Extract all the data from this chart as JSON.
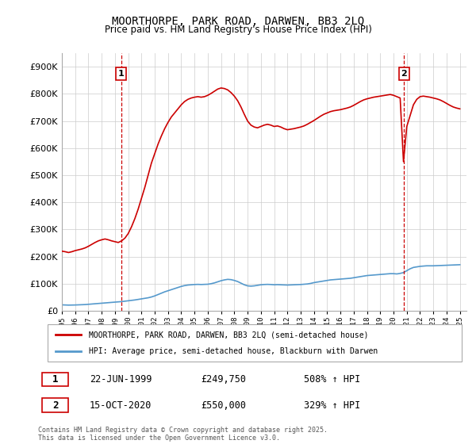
{
  "title": "MOORTHORPE, PARK ROAD, DARWEN, BB3 2LQ",
  "subtitle": "Price paid vs. HM Land Registry's House Price Index (HPI)",
  "legend_label_red": "MOORTHORPE, PARK ROAD, DARWEN, BB3 2LQ (semi-detached house)",
  "legend_label_blue": "HPI: Average price, semi-detached house, Blackburn with Darwen",
  "sale1_date": "22-JUN-1999",
  "sale1_price": 249750,
  "sale1_hpi_pct": "508% ↑ HPI",
  "sale2_date": "15-OCT-2020",
  "sale2_price": 550000,
  "sale2_hpi_pct": "329% ↑ HPI",
  "footer": "Contains HM Land Registry data © Crown copyright and database right 2025.\nThis data is licensed under the Open Government Licence v3.0.",
  "red_color": "#cc0000",
  "blue_color": "#5599cc",
  "dashed_color": "#cc0000",
  "background_color": "#ffffff",
  "grid_color": "#cccccc",
  "ylim": [
    0,
    950000
  ],
  "ytick_step": 100000,
  "sale1_x": 1999.47,
  "sale2_x": 2020.79,
  "hpi_data": {
    "years": [
      1995.0,
      1995.25,
      1995.5,
      1995.75,
      1996.0,
      1996.25,
      1996.5,
      1996.75,
      1997.0,
      1997.25,
      1997.5,
      1997.75,
      1998.0,
      1998.25,
      1998.5,
      1998.75,
      1999.0,
      1999.25,
      1999.5,
      1999.75,
      2000.0,
      2000.25,
      2000.5,
      2000.75,
      2001.0,
      2001.25,
      2001.5,
      2001.75,
      2002.0,
      2002.25,
      2002.5,
      2002.75,
      2003.0,
      2003.25,
      2003.5,
      2003.75,
      2004.0,
      2004.25,
      2004.5,
      2004.75,
      2005.0,
      2005.25,
      2005.5,
      2005.75,
      2006.0,
      2006.25,
      2006.5,
      2006.75,
      2007.0,
      2007.25,
      2007.5,
      2007.75,
      2008.0,
      2008.25,
      2008.5,
      2008.75,
      2009.0,
      2009.25,
      2009.5,
      2009.75,
      2010.0,
      2010.25,
      2010.5,
      2010.75,
      2011.0,
      2011.25,
      2011.5,
      2011.75,
      2012.0,
      2012.25,
      2012.5,
      2012.75,
      2013.0,
      2013.25,
      2013.5,
      2013.75,
      2014.0,
      2014.25,
      2014.5,
      2014.75,
      2015.0,
      2015.25,
      2015.5,
      2015.75,
      2016.0,
      2016.25,
      2016.5,
      2016.75,
      2017.0,
      2017.25,
      2017.5,
      2017.75,
      2018.0,
      2018.25,
      2018.5,
      2018.75,
      2019.0,
      2019.25,
      2019.5,
      2019.75,
      2020.0,
      2020.25,
      2020.5,
      2020.75,
      2021.0,
      2021.25,
      2021.5,
      2021.75,
      2022.0,
      2022.25,
      2022.5,
      2022.75,
      2023.0,
      2023.25,
      2023.5,
      2023.75,
      2024.0,
      2024.25,
      2024.5,
      2024.75,
      2025.0
    ],
    "values": [
      22000,
      21500,
      21000,
      21200,
      21500,
      22000,
      22500,
      23000,
      24000,
      25000,
      26000,
      27000,
      28000,
      29000,
      30000,
      31000,
      32000,
      33000,
      34000,
      35500,
      37000,
      38500,
      40000,
      42000,
      44000,
      46000,
      48000,
      51000,
      55000,
      60000,
      65000,
      70000,
      74000,
      78000,
      82000,
      86000,
      90000,
      93000,
      95000,
      96000,
      97000,
      97500,
      97000,
      97500,
      98000,
      100000,
      103000,
      107000,
      111000,
      114000,
      116000,
      115000,
      112000,
      108000,
      102000,
      96000,
      92000,
      91000,
      92000,
      94000,
      96000,
      97000,
      97500,
      97000,
      96000,
      96500,
      96000,
      95500,
      95000,
      95500,
      96000,
      96500,
      97000,
      98000,
      99000,
      101000,
      104000,
      106000,
      108000,
      110000,
      112000,
      114000,
      115000,
      116000,
      117000,
      118000,
      119000,
      120000,
      122000,
      124000,
      126000,
      128000,
      130000,
      131000,
      132000,
      133000,
      134000,
      135000,
      136000,
      137000,
      137000,
      136000,
      138000,
      141000,
      148000,
      155000,
      160000,
      162000,
      164000,
      165000,
      166000,
      166000,
      166000,
      166500,
      167000,
      167500,
      168000,
      168500,
      169000,
      169500,
      170000
    ]
  },
  "red_data": {
    "years": [
      1995.0,
      1995.25,
      1995.5,
      1995.75,
      1996.0,
      1996.25,
      1996.5,
      1996.75,
      1997.0,
      1997.25,
      1997.5,
      1997.75,
      1998.0,
      1998.25,
      1998.5,
      1998.75,
      1999.0,
      1999.25,
      1999.5,
      1999.75,
      2000.0,
      2000.25,
      2000.5,
      2000.75,
      2001.0,
      2001.25,
      2001.5,
      2001.75,
      2002.0,
      2002.25,
      2002.5,
      2002.75,
      2003.0,
      2003.25,
      2003.5,
      2003.75,
      2004.0,
      2004.25,
      2004.5,
      2004.75,
      2005.0,
      2005.25,
      2005.5,
      2005.75,
      2006.0,
      2006.25,
      2006.5,
      2006.75,
      2007.0,
      2007.25,
      2007.5,
      2007.75,
      2008.0,
      2008.25,
      2008.5,
      2008.75,
      2009.0,
      2009.25,
      2009.5,
      2009.75,
      2010.0,
      2010.25,
      2010.5,
      2010.75,
      2011.0,
      2011.25,
      2011.5,
      2011.75,
      2012.0,
      2012.25,
      2012.5,
      2012.75,
      2013.0,
      2013.25,
      2013.5,
      2013.75,
      2014.0,
      2014.25,
      2014.5,
      2014.75,
      2015.0,
      2015.25,
      2015.5,
      2015.75,
      2016.0,
      2016.25,
      2016.5,
      2016.75,
      2017.0,
      2017.25,
      2017.5,
      2017.75,
      2018.0,
      2018.25,
      2018.5,
      2018.75,
      2019.0,
      2019.25,
      2019.5,
      2019.75,
      2020.0,
      2020.25,
      2020.5,
      2020.75,
      2021.0,
      2021.25,
      2021.5,
      2021.75,
      2022.0,
      2022.25,
      2022.5,
      2022.75,
      2023.0,
      2023.25,
      2023.5,
      2023.75,
      2024.0,
      2024.25,
      2024.5,
      2024.75,
      2025.0
    ],
    "values": [
      220000,
      218000,
      215000,
      218000,
      222000,
      225000,
      228000,
      232000,
      238000,
      245000,
      252000,
      258000,
      262000,
      265000,
      262000,
      258000,
      255000,
      252000,
      258000,
      268000,
      285000,
      310000,
      340000,
      375000,
      415000,
      455000,
      500000,
      545000,
      580000,
      615000,
      645000,
      672000,
      695000,
      715000,
      730000,
      745000,
      760000,
      772000,
      780000,
      785000,
      788000,
      790000,
      788000,
      790000,
      795000,
      802000,
      810000,
      818000,
      822000,
      820000,
      815000,
      805000,
      792000,
      775000,
      752000,
      725000,
      700000,
      685000,
      678000,
      675000,
      680000,
      685000,
      688000,
      685000,
      680000,
      682000,
      678000,
      672000,
      668000,
      670000,
      672000,
      675000,
      678000,
      682000,
      688000,
      695000,
      702000,
      710000,
      718000,
      725000,
      730000,
      735000,
      738000,
      740000,
      742000,
      745000,
      748000,
      752000,
      758000,
      765000,
      772000,
      778000,
      782000,
      785000,
      788000,
      790000,
      792000,
      794000,
      796000,
      798000,
      795000,
      790000,
      785000,
      550000,
      680000,
      720000,
      760000,
      780000,
      790000,
      792000,
      790000,
      788000,
      785000,
      782000,
      778000,
      772000,
      765000,
      758000,
      752000,
      748000,
      745000
    ]
  }
}
